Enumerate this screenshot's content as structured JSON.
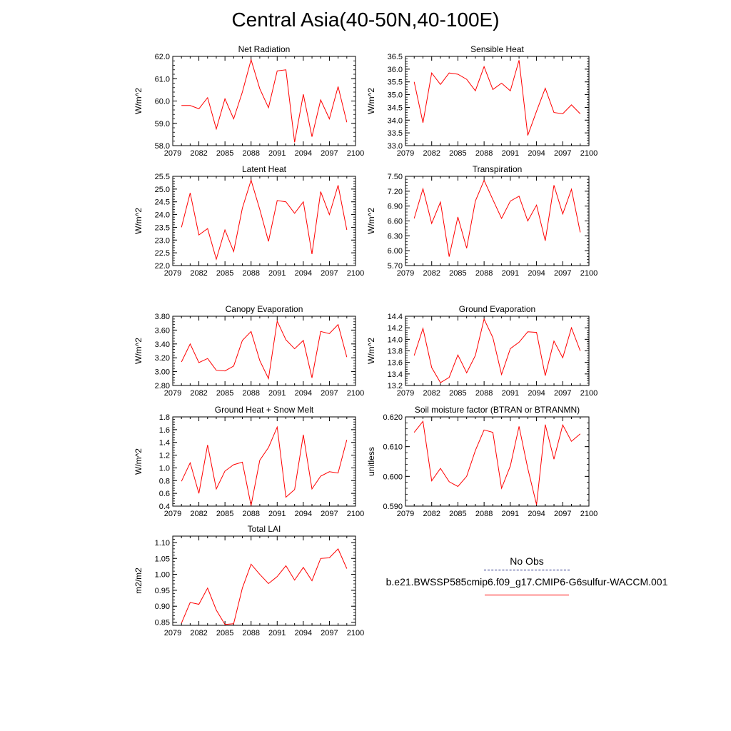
{
  "title": "Central Asia(40-50N,40-100E)",
  "legend": {
    "obs_label": "No Obs",
    "case_label": "b.e21.BWSSP585cmip6.f09_g17.CMIP6-G6sulfur-WACCM.001",
    "line_color": "#ff0000",
    "obs_color": "#1a237e"
  },
  "chart_data": [
    {
      "type": "line",
      "title": "Net Radiation",
      "ylabel": "W/m^2",
      "xlim": [
        2079,
        2100
      ],
      "ylim": [
        58.0,
        62.0
      ],
      "xticks": [
        2079,
        2082,
        2085,
        2088,
        2091,
        2094,
        2097,
        2100
      ],
      "yticks": [
        "58.0",
        "59.0",
        "60.0",
        "61.0",
        "62.0"
      ],
      "x": [
        2080,
        2081,
        2082,
        2083,
        2084,
        2085,
        2086,
        2087,
        2088,
        2089,
        2090,
        2091,
        2092,
        2093,
        2094,
        2095,
        2096,
        2097,
        2098,
        2099
      ],
      "series": [
        {
          "values": [
            59.8,
            59.8,
            59.65,
            60.15,
            58.75,
            60.1,
            59.2,
            60.4,
            61.85,
            60.55,
            59.7,
            61.35,
            61.4,
            58.15,
            60.3,
            58.4,
            60.05,
            59.2,
            60.65,
            59.05
          ]
        }
      ]
    },
    {
      "type": "line",
      "title": "Sensible Heat",
      "ylabel": "W/m^2",
      "xlim": [
        2079,
        2100
      ],
      "ylim": [
        33.0,
        36.5
      ],
      "xticks": [
        2079,
        2082,
        2085,
        2088,
        2091,
        2094,
        2097,
        2100
      ],
      "yticks": [
        "33.0",
        "33.5",
        "34.0",
        "34.5",
        "35.0",
        "35.5",
        "36.0",
        "36.5"
      ],
      "x": [
        2080,
        2081,
        2082,
        2083,
        2084,
        2085,
        2086,
        2087,
        2088,
        2089,
        2090,
        2091,
        2092,
        2093,
        2094,
        2095,
        2096,
        2097,
        2098,
        2099
      ],
      "series": [
        {
          "values": [
            35.5,
            33.9,
            35.85,
            35.4,
            35.85,
            35.8,
            35.6,
            35.15,
            36.1,
            35.2,
            35.45,
            35.15,
            36.35,
            33.4,
            34.35,
            35.25,
            34.3,
            34.25,
            34.6,
            34.25
          ]
        }
      ]
    },
    {
      "type": "line",
      "title": "Latent Heat",
      "ylabel": "W/m^2",
      "xlim": [
        2079,
        2100
      ],
      "ylim": [
        22.0,
        25.5
      ],
      "xticks": [
        2079,
        2082,
        2085,
        2088,
        2091,
        2094,
        2097,
        2100
      ],
      "yticks": [
        "22.0",
        "22.5",
        "23.0",
        "23.5",
        "24.0",
        "24.5",
        "25.0",
        "25.5"
      ],
      "x": [
        2080,
        2081,
        2082,
        2083,
        2084,
        2085,
        2086,
        2087,
        2088,
        2089,
        2090,
        2091,
        2092,
        2093,
        2094,
        2095,
        2096,
        2097,
        2098,
        2099
      ],
      "series": [
        {
          "values": [
            23.5,
            24.85,
            23.2,
            23.45,
            22.25,
            23.4,
            22.55,
            24.25,
            25.35,
            24.2,
            22.95,
            24.55,
            24.5,
            24.05,
            24.5,
            22.45,
            24.9,
            24.0,
            25.15,
            23.4
          ]
        }
      ]
    },
    {
      "type": "line",
      "title": "Transpiration",
      "ylabel": "W/m^2",
      "xlim": [
        2079,
        2100
      ],
      "ylim": [
        5.7,
        7.5
      ],
      "xticks": [
        2079,
        2082,
        2085,
        2088,
        2091,
        2094,
        2097,
        2100
      ],
      "yticks": [
        "5.70",
        "6.00",
        "6.30",
        "6.60",
        "6.90",
        "7.20",
        "7.50"
      ],
      "x": [
        2080,
        2081,
        2082,
        2083,
        2084,
        2085,
        2086,
        2087,
        2088,
        2089,
        2090,
        2091,
        2092,
        2093,
        2094,
        2095,
        2096,
        2097,
        2098,
        2099
      ],
      "series": [
        {
          "values": [
            6.65,
            7.25,
            6.55,
            6.98,
            5.88,
            6.68,
            6.05,
            7.0,
            7.42,
            7.03,
            6.65,
            7.0,
            7.1,
            6.6,
            6.92,
            6.2,
            7.32,
            6.74,
            7.24,
            6.37
          ]
        }
      ]
    },
    {
      "type": "line",
      "title": "Canopy Evaporation",
      "ylabel": "W/m^2",
      "xlim": [
        2079,
        2100
      ],
      "ylim": [
        2.8,
        3.8
      ],
      "xticks": [
        2079,
        2082,
        2085,
        2088,
        2091,
        2094,
        2097,
        2100
      ],
      "yticks": [
        "2.80",
        "3.00",
        "3.20",
        "3.40",
        "3.60",
        "3.80"
      ],
      "x": [
        2080,
        2081,
        2082,
        2083,
        2084,
        2085,
        2086,
        2087,
        2088,
        2089,
        2090,
        2091,
        2092,
        2093,
        2094,
        2095,
        2096,
        2097,
        2098,
        2099
      ],
      "series": [
        {
          "values": [
            3.14,
            3.4,
            3.13,
            3.19,
            3.02,
            3.01,
            3.08,
            3.45,
            3.58,
            3.16,
            2.9,
            3.73,
            3.46,
            3.33,
            3.45,
            2.91,
            3.58,
            3.55,
            3.68,
            3.21
          ]
        }
      ]
    },
    {
      "type": "line",
      "title": "Ground Evaporation",
      "ylabel": "W/m^2",
      "xlim": [
        2079,
        2100
      ],
      "ylim": [
        13.2,
        14.4
      ],
      "xticks": [
        2079,
        2082,
        2085,
        2088,
        2091,
        2094,
        2097,
        2100
      ],
      "yticks": [
        "13.2",
        "13.4",
        "13.6",
        "13.8",
        "14.0",
        "14.2",
        "14.4"
      ],
      "x": [
        2080,
        2081,
        2082,
        2083,
        2084,
        2085,
        2086,
        2087,
        2088,
        2089,
        2090,
        2091,
        2092,
        2093,
        2094,
        2095,
        2096,
        2097,
        2098,
        2099
      ],
      "series": [
        {
          "values": [
            13.72,
            14.19,
            13.51,
            13.25,
            13.34,
            13.73,
            13.42,
            13.72,
            14.35,
            14.03,
            13.39,
            13.84,
            13.95,
            14.13,
            14.12,
            13.37,
            13.97,
            13.68,
            14.2,
            13.8
          ]
        }
      ]
    },
    {
      "type": "line",
      "title": "Ground Heat + Snow Melt",
      "ylabel": "W/m^2",
      "xlim": [
        2079,
        2100
      ],
      "ylim": [
        0.4,
        1.8
      ],
      "xticks": [
        2079,
        2082,
        2085,
        2088,
        2091,
        2094,
        2097,
        2100
      ],
      "yticks": [
        "0.4",
        "0.6",
        "0.8",
        "1.0",
        "1.2",
        "1.4",
        "1.6",
        "1.8"
      ],
      "x": [
        2080,
        2081,
        2082,
        2083,
        2084,
        2085,
        2086,
        2087,
        2088,
        2089,
        2090,
        2091,
        2092,
        2093,
        2094,
        2095,
        2096,
        2097,
        2098,
        2099
      ],
      "series": [
        {
          "values": [
            0.79,
            1.08,
            0.6,
            1.36,
            0.67,
            0.95,
            1.05,
            1.09,
            0.41,
            1.12,
            1.32,
            1.64,
            0.54,
            0.66,
            1.52,
            0.67,
            0.87,
            0.94,
            0.92,
            1.44
          ]
        }
      ]
    },
    {
      "type": "line",
      "title": "Soil moisture factor (BTRAN or BTRANMN)",
      "ylabel": "unitless",
      "xlim": [
        2079,
        2100
      ],
      "ylim": [
        0.59,
        0.62
      ],
      "xticks": [
        2079,
        2082,
        2085,
        2088,
        2091,
        2094,
        2097,
        2100
      ],
      "yticks": [
        "0.590",
        "0.600",
        "0.610",
        "0.620"
      ],
      "x": [
        2080,
        2081,
        2082,
        2083,
        2084,
        2085,
        2086,
        2087,
        2088,
        2089,
        2090,
        2091,
        2092,
        2093,
        2094,
        2095,
        2096,
        2097,
        2098,
        2099
      ],
      "series": [
        {
          "values": [
            0.6148,
            0.6185,
            0.5985,
            0.6027,
            0.5982,
            0.5966,
            0.6,
            0.6087,
            0.6156,
            0.6148,
            0.596,
            0.6035,
            0.6168,
            0.6027,
            0.5905,
            0.6174,
            0.6058,
            0.6173,
            0.6118,
            0.6143
          ]
        }
      ]
    },
    {
      "type": "line",
      "title": "Total LAI",
      "ylabel": "m2/m2",
      "xlim": [
        2079,
        2100
      ],
      "ylim": [
        0.84,
        1.12
      ],
      "xticks": [
        2079,
        2082,
        2085,
        2088,
        2091,
        2094,
        2097,
        2100
      ],
      "yticks": [
        "0.85",
        "0.90",
        "0.95",
        "1.00",
        "1.05",
        "1.10"
      ],
      "ytick_values": [
        0.85,
        0.9,
        0.95,
        1.0,
        1.05,
        1.1
      ],
      "x": [
        2080,
        2081,
        2082,
        2083,
        2084,
        2085,
        2086,
        2087,
        2088,
        2089,
        2090,
        2091,
        2092,
        2093,
        2094,
        2095,
        2096,
        2097,
        2098,
        2099
      ],
      "series": [
        {
          "values": [
            0.847,
            0.912,
            0.906,
            0.957,
            0.888,
            0.843,
            0.845,
            0.957,
            1.032,
            1.0,
            0.971,
            0.993,
            1.027,
            0.982,
            1.022,
            0.98,
            1.05,
            1.052,
            1.08,
            1.018
          ]
        }
      ]
    }
  ]
}
